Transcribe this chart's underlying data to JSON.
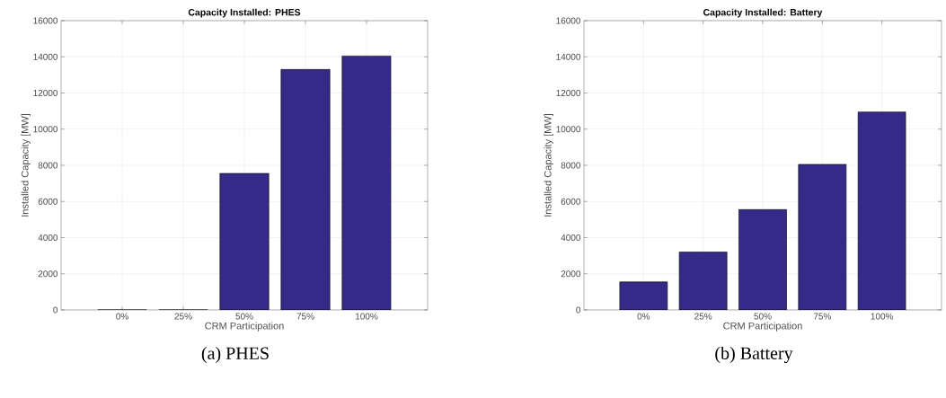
{
  "chart_data": [
    {
      "type": "bar",
      "title": "Capacity Installed: PHES",
      "xlabel": "CRM Participation",
      "ylabel": "Installed Capacity [MW]",
      "categories": [
        "0%",
        "25%",
        "50%",
        "75%",
        "100%"
      ],
      "values": [
        0,
        0,
        7550,
        13300,
        14050
      ],
      "color": "#352a87",
      "ylim": [
        0,
        16000
      ],
      "yticks": [
        0,
        2000,
        4000,
        6000,
        8000,
        10000,
        12000,
        14000,
        16000
      ],
      "grid": true,
      "annotations": [
        "(a) PHES"
      ]
    },
    {
      "type": "bar",
      "title": "Capacity Installed: Battery",
      "xlabel": "CRM Participation",
      "ylabel": "Installed Capacity [MW]",
      "categories": [
        "0%",
        "25%",
        "50%",
        "75%",
        "100%"
      ],
      "values": [
        1550,
        3200,
        5550,
        8050,
        10950
      ],
      "color": "#352a87",
      "ylim": [
        0,
        16000
      ],
      "yticks": [
        0,
        2000,
        4000,
        6000,
        8000,
        10000,
        12000,
        14000,
        16000
      ],
      "grid": true,
      "annotations": [
        "(b) Battery"
      ]
    }
  ]
}
